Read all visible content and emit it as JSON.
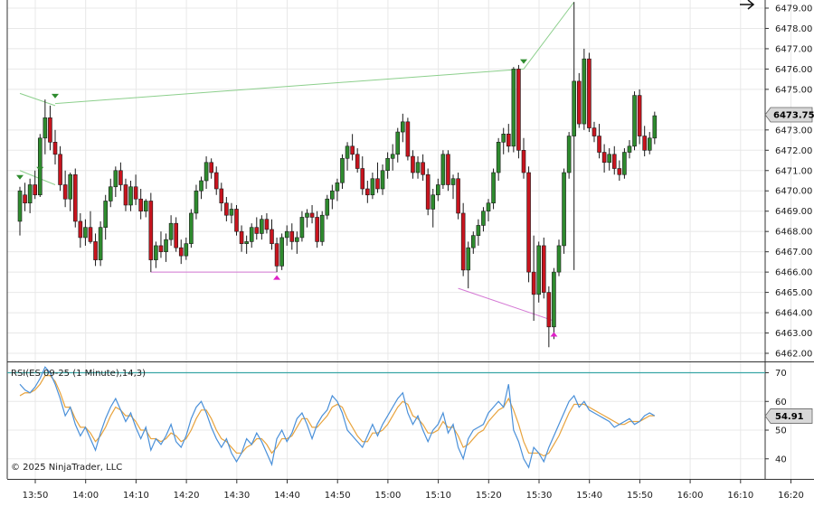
{
  "colors": {
    "background": "#ffffff",
    "grid": "#e8e8e8",
    "axis": "#333333",
    "bull": "#2e8b2e",
    "bear": "#c8141e",
    "wick": "#1a1a1a",
    "rsi": "#4a90d9",
    "rsi_avg": "#e8a33d",
    "rsi_70": "#3aa6a6",
    "signal_high": "#2e8b2e",
    "signal_low": "#e020c8",
    "line_high": "#8ccf8c",
    "line_low": "#d478d4",
    "badge_bg": "#d8d8d8"
  },
  "chart_data": {
    "type": "candlestick",
    "x_tick_labels": [
      "13:50",
      "14:00",
      "14:10",
      "14:20",
      "14:30",
      "14:40",
      "14:50",
      "15:00",
      "15:10",
      "15:20",
      "15:30",
      "15:40",
      "15:50",
      "16:00",
      "16:10",
      "16:20"
    ],
    "y_tick_labels": [
      "6462.00",
      "6463.00",
      "6464.00",
      "6465.00",
      "6466.00",
      "6467.00",
      "6468.00",
      "6469.00",
      "6470.00",
      "6471.00",
      "6472.00",
      "6473.00",
      "6475.00",
      "6476.00",
      "6477.00",
      "6478.00",
      "6479.00"
    ],
    "price_ylim": [
      6461.6,
      6479.4
    ],
    "last_price": "6473.75",
    "ohlc": [
      [
        6468.5,
        6470.2,
        6467.8,
        6470.0
      ],
      [
        6469.8,
        6470.4,
        6469.0,
        6469.4
      ],
      [
        6469.4,
        6470.6,
        6468.9,
        6470.3
      ],
      [
        6470.3,
        6471.0,
        6469.6,
        6469.8
      ],
      [
        6469.8,
        6472.8,
        6469.7,
        6472.6
      ],
      [
        6472.6,
        6474.5,
        6471.8,
        6473.6
      ],
      [
        6473.6,
        6474.2,
        6472.0,
        6472.4
      ],
      [
        6472.4,
        6473.0,
        6471.3,
        6471.8
      ],
      [
        6471.8,
        6472.2,
        6470.0,
        6470.3
      ],
      [
        6470.3,
        6471.0,
        6469.2,
        6469.6
      ],
      [
        6469.6,
        6470.9,
        6469.0,
        6470.8
      ],
      [
        6470.8,
        6471.1,
        6468.2,
        6468.5
      ],
      [
        6468.5,
        6468.9,
        6467.2,
        6467.7
      ],
      [
        6467.7,
        6468.6,
        6467.3,
        6468.2
      ],
      [
        6468.2,
        6469.0,
        6467.4,
        6467.5
      ],
      [
        6467.5,
        6467.9,
        6466.3,
        6466.6
      ],
      [
        6466.6,
        6468.5,
        6466.3,
        6468.2
      ],
      [
        6468.2,
        6469.8,
        6467.6,
        6469.5
      ],
      [
        6469.5,
        6470.6,
        6469.2,
        6470.2
      ],
      [
        6470.2,
        6471.2,
        6469.7,
        6471.0
      ],
      [
        6471.0,
        6471.4,
        6470.0,
        6470.3
      ],
      [
        6470.3,
        6470.6,
        6469.0,
        6469.3
      ],
      [
        6469.3,
        6470.5,
        6469.0,
        6470.2
      ],
      [
        6470.2,
        6470.8,
        6469.3,
        6469.6
      ],
      [
        6469.6,
        6470.1,
        6468.6,
        6469.0
      ],
      [
        6469.0,
        6469.6,
        6468.7,
        6469.5
      ],
      [
        6469.5,
        6469.9,
        6466.0,
        6466.6
      ],
      [
        6466.6,
        6467.5,
        6466.2,
        6467.3
      ],
      [
        6467.3,
        6468.0,
        6466.7,
        6467.0
      ],
      [
        6467.0,
        6467.9,
        6466.5,
        6467.6
      ],
      [
        6467.6,
        6468.8,
        6467.3,
        6468.4
      ],
      [
        6468.4,
        6468.7,
        6467.0,
        6467.2
      ],
      [
        6467.2,
        6467.6,
        6466.4,
        6466.8
      ],
      [
        6466.8,
        6467.7,
        6466.6,
        6467.4
      ],
      [
        6467.4,
        6469.1,
        6467.2,
        6468.9
      ],
      [
        6468.9,
        6470.3,
        6468.6,
        6470.0
      ],
      [
        6470.0,
        6470.7,
        6469.6,
        6470.5
      ],
      [
        6470.5,
        6471.7,
        6470.1,
        6471.4
      ],
      [
        6471.4,
        6471.6,
        6470.6,
        6470.9
      ],
      [
        6470.9,
        6471.2,
        6469.8,
        6470.1
      ],
      [
        6470.1,
        6470.4,
        6469.0,
        6469.4
      ],
      [
        6469.4,
        6469.7,
        6468.5,
        6468.8
      ],
      [
        6468.8,
        6469.4,
        6468.4,
        6469.1
      ],
      [
        6469.1,
        6469.3,
        6467.8,
        6468.0
      ],
      [
        6468.0,
        6468.3,
        6467.0,
        6467.4
      ],
      [
        6467.4,
        6467.8,
        6466.9,
        6467.5
      ],
      [
        6467.5,
        6468.4,
        6467.2,
        6468.2
      ],
      [
        6468.2,
        6468.7,
        6467.6,
        6467.9
      ],
      [
        6467.9,
        6468.8,
        6467.6,
        6468.6
      ],
      [
        6468.6,
        6468.9,
        6467.9,
        6468.1
      ],
      [
        6468.1,
        6468.6,
        6467.1,
        6467.4
      ],
      [
        6467.4,
        6467.7,
        6466.0,
        6466.3
      ],
      [
        6466.3,
        6467.9,
        6466.1,
        6467.7
      ],
      [
        6467.7,
        6468.3,
        6467.3,
        6468.0
      ],
      [
        6468.0,
        6468.4,
        6467.1,
        6467.5
      ],
      [
        6467.5,
        6468.0,
        6466.9,
        6467.7
      ],
      [
        6467.7,
        6469.0,
        6467.5,
        6468.7
      ],
      [
        6468.7,
        6469.1,
        6468.2,
        6468.9
      ],
      [
        6468.9,
        6469.3,
        6468.4,
        6468.7
      ],
      [
        6468.7,
        6469.0,
        6467.2,
        6467.5
      ],
      [
        6467.5,
        6469.0,
        6467.3,
        6468.8
      ],
      [
        6468.8,
        6469.8,
        6468.6,
        6469.6
      ],
      [
        6469.6,
        6470.3,
        6469.1,
        6470.0
      ],
      [
        6470.0,
        6470.6,
        6469.5,
        6470.4
      ],
      [
        6470.4,
        6471.8,
        6470.1,
        6471.6
      ],
      [
        6471.6,
        6472.4,
        6471.0,
        6472.2
      ],
      [
        6472.2,
        6472.8,
        6471.5,
        6471.8
      ],
      [
        6471.8,
        6472.1,
        6470.9,
        6471.1
      ],
      [
        6471.1,
        6471.7,
        6469.8,
        6470.1
      ],
      [
        6470.1,
        6470.5,
        6469.4,
        6469.8
      ],
      [
        6469.8,
        6470.9,
        6469.6,
        6470.6
      ],
      [
        6470.6,
        6471.4,
        6469.9,
        6470.1
      ],
      [
        6470.1,
        6471.3,
        6469.8,
        6471.0
      ],
      [
        6471.0,
        6471.9,
        6470.6,
        6471.6
      ],
      [
        6471.6,
        6472.3,
        6471.0,
        6471.8
      ],
      [
        6471.8,
        6473.1,
        6471.4,
        6472.9
      ],
      [
        6472.9,
        6473.8,
        6472.4,
        6473.4
      ],
      [
        6473.4,
        6473.6,
        6471.5,
        6471.7
      ],
      [
        6471.7,
        6472.0,
        6470.6,
        6470.9
      ],
      [
        6470.9,
        6471.7,
        6470.6,
        6471.4
      ],
      [
        6471.4,
        6471.8,
        6470.5,
        6470.8
      ],
      [
        6470.8,
        6471.1,
        6468.8,
        6469.1
      ],
      [
        6469.1,
        6470.1,
        6468.2,
        6469.8
      ],
      [
        6469.8,
        6470.6,
        6469.5,
        6470.3
      ],
      [
        6470.3,
        6472.0,
        6470.1,
        6471.8
      ],
      [
        6471.8,
        6472.0,
        6470.0,
        6470.3
      ],
      [
        6470.3,
        6470.8,
        6469.6,
        6470.6
      ],
      [
        6470.6,
        6470.9,
        6468.6,
        6468.9
      ],
      [
        6468.9,
        6469.4,
        6465.8,
        6466.1
      ],
      [
        6466.1,
        6467.5,
        6465.2,
        6467.2
      ],
      [
        6467.2,
        6468.0,
        6466.9,
        6467.8
      ],
      [
        6467.8,
        6468.6,
        6467.3,
        6468.3
      ],
      [
        6468.3,
        6469.2,
        6468.0,
        6469.0
      ],
      [
        6469.0,
        6469.6,
        6468.5,
        6469.4
      ],
      [
        6469.4,
        6471.1,
        6469.1,
        6470.9
      ],
      [
        6470.9,
        6472.6,
        6470.5,
        6472.4
      ],
      [
        6472.4,
        6473.1,
        6471.8,
        6472.8
      ],
      [
        6472.8,
        6473.3,
        6471.9,
        6472.2
      ],
      [
        6472.2,
        6476.1,
        6471.9,
        6476.0
      ],
      [
        6476.0,
        6476.2,
        6471.6,
        6472.0
      ],
      [
        6472.0,
        6472.6,
        6470.6,
        6470.9
      ],
      [
        6470.9,
        6471.2,
        6465.5,
        6466.0
      ],
      [
        6466.0,
        6467.8,
        6463.6,
        6464.9
      ],
      [
        6464.9,
        6467.5,
        6464.5,
        6467.3
      ],
      [
        6467.3,
        6467.7,
        6464.7,
        6465.0
      ],
      [
        6465.0,
        6465.3,
        6462.3,
        6463.3
      ],
      [
        6463.3,
        6466.2,
        6462.7,
        6466.0
      ],
      [
        6466.0,
        6467.6,
        6465.8,
        6467.3
      ],
      [
        6467.3,
        6471.1,
        6466.9,
        6470.9
      ],
      [
        6470.9,
        6472.9,
        6470.6,
        6472.7
      ],
      [
        6472.7,
        6479.3,
        6466.1,
        6475.4
      ],
      [
        6475.4,
        6475.8,
        6473.1,
        6473.3
      ],
      [
        6473.3,
        6477.0,
        6473.0,
        6476.5
      ],
      [
        6476.5,
        6476.8,
        6472.9,
        6473.1
      ],
      [
        6473.1,
        6473.4,
        6472.4,
        6472.7
      ],
      [
        6472.7,
        6473.3,
        6471.6,
        6471.9
      ],
      [
        6471.9,
        6472.3,
        6470.9,
        6471.4
      ],
      [
        6471.4,
        6472.1,
        6471.0,
        6471.8
      ],
      [
        6471.8,
        6472.2,
        6470.8,
        6471.1
      ],
      [
        6471.1,
        6471.5,
        6470.5,
        6470.8
      ],
      [
        6470.8,
        6472.1,
        6470.6,
        6471.9
      ],
      [
        6471.9,
        6472.5,
        6471.6,
        6472.2
      ],
      [
        6472.2,
        6474.9,
        6472.0,
        6474.7
      ],
      [
        6474.7,
        6475.0,
        6472.3,
        6472.7
      ],
      [
        6472.7,
        6473.2,
        6471.7,
        6472.0
      ],
      [
        6472.0,
        6472.9,
        6471.8,
        6472.6
      ],
      [
        6472.6,
        6473.9,
        6472.3,
        6473.7
      ]
    ],
    "signals_high": [
      {
        "index": 0,
        "price": 6470.6
      },
      {
        "index": 4,
        "price": 6471.0
      },
      {
        "index": 7,
        "price": 6474.6
      },
      {
        "index": 100,
        "price": 6476.3
      }
    ],
    "signals_low": [
      {
        "index": 51,
        "price": 6465.8
      },
      {
        "index": 106,
        "price": 6463.0
      }
    ],
    "divergence_lines_high": [
      {
        "x1": 0,
        "p1": 6471.0,
        "x2": 7,
        "p2": 6470.3
      },
      {
        "x1": 0,
        "p1": 6474.8,
        "x2": 7,
        "p2": 6474.2
      },
      {
        "x1": 7,
        "p1": 6474.3,
        "x2": 100,
        "p2": 6476.0
      },
      {
        "x1": 100,
        "p1": 6476.0,
        "x2": 110,
        "p2": 6479.3
      }
    ],
    "divergence_lines_low": [
      {
        "x1": 26,
        "p1": 6466.0,
        "x2": 51,
        "p2": 6466.0
      },
      {
        "x1": 87,
        "p1": 6465.2,
        "x2": 106,
        "p2": 6463.6
      }
    ],
    "rsi": {
      "title": "RSI(ES 09-25 (1 Minute),14,3)",
      "ylim": [
        33,
        73
      ],
      "y_tick_labels": [
        "40",
        "50",
        "60",
        "70"
      ],
      "overbought": 70,
      "last_value": "54.91",
      "values": [
        66,
        64,
        63,
        65,
        68,
        72,
        70,
        66,
        61,
        55,
        58,
        52,
        48,
        51,
        47,
        43,
        49,
        54,
        58,
        61,
        57,
        53,
        56,
        51,
        47,
        51,
        43,
        47,
        45,
        48,
        52,
        46,
        44,
        48,
        54,
        58,
        60,
        56,
        51,
        47,
        44,
        47,
        42,
        39,
        42,
        47,
        45,
        49,
        46,
        42,
        38,
        47,
        50,
        46,
        49,
        54,
        56,
        52,
        47,
        52,
        55,
        57,
        62,
        60,
        56,
        50,
        48,
        46,
        44,
        48,
        52,
        48,
        52,
        55,
        58,
        61,
        63,
        56,
        52,
        55,
        50,
        46,
        50,
        52,
        56,
        49,
        52,
        44,
        40,
        47,
        50,
        51,
        52,
        56,
        58,
        60,
        58,
        66,
        50,
        46,
        40,
        37,
        44,
        42,
        39,
        44,
        48,
        52,
        56,
        60,
        62,
        58,
        60,
        57,
        56,
        55,
        54,
        53,
        51,
        52,
        53,
        54,
        52,
        53,
        55,
        56,
        55
      ],
      "avg_values": [
        62,
        63,
        63,
        64,
        66,
        69,
        69,
        67,
        63,
        58,
        58,
        54,
        51,
        51,
        49,
        46,
        48,
        51,
        55,
        58,
        57,
        55,
        55,
        53,
        50,
        50,
        47,
        47,
        46,
        47,
        49,
        48,
        46,
        47,
        50,
        54,
        57,
        57,
        54,
        50,
        47,
        46,
        44,
        42,
        42,
        44,
        45,
        47,
        47,
        45,
        42,
        44,
        47,
        47,
        48,
        51,
        54,
        54,
        51,
        51,
        53,
        55,
        58,
        59,
        58,
        54,
        51,
        48,
        46,
        46,
        49,
        49,
        50,
        52,
        55,
        58,
        60,
        59,
        55,
        54,
        52,
        49,
        49,
        50,
        53,
        51,
        51,
        48,
        44,
        45,
        47,
        49,
        50,
        53,
        55,
        57,
        58,
        61,
        57,
        52,
        46,
        42,
        42,
        42,
        41,
        42,
        45,
        48,
        52,
        56,
        59,
        59,
        59,
        58,
        57,
        56,
        55,
        54,
        53,
        52,
        52,
        53,
        53,
        53,
        54,
        55,
        55
      ]
    },
    "copyright": "© 2025 NinjaTrader, LLC"
  }
}
